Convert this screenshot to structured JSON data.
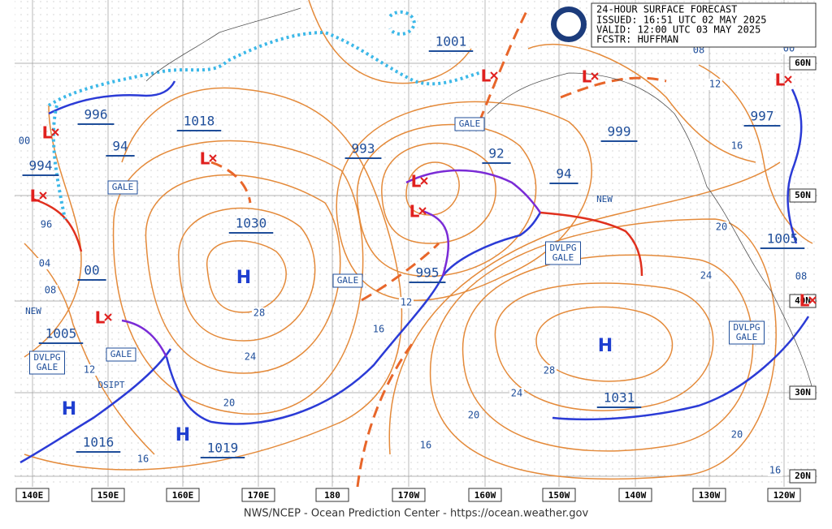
{
  "header": {
    "title": "24-HOUR SURFACE FORECAST",
    "issued": "ISSUED: 16:51 UTC 02 MAY 2025",
    "valid": "VALID:  12:00 UTC 03 MAY 2025",
    "forecaster": "FCSTR:  HUFFMAN"
  },
  "footer": "NWS/NCEP - Ocean Prediction Center - https://ocean.weather.gov",
  "longitude_labels": [
    "140E",
    "150E",
    "160E",
    "170E",
    "180",
    "170W",
    "160W",
    "150W",
    "140W",
    "130W",
    "120W"
  ],
  "latitude_labels": [
    "60N",
    "50N",
    "40N",
    "30N",
    "20N"
  ],
  "pressure_centers": [
    "996",
    "1018",
    "994",
    "94",
    "00",
    "1005",
    "1016",
    "1019",
    "1030",
    "993",
    "1001",
    "995",
    "999",
    "92",
    "94",
    "997",
    "1005",
    "1031"
  ],
  "highs": [
    "H",
    "H",
    "H",
    "H"
  ],
  "lows": [
    "L",
    "L",
    "L",
    "L",
    "L",
    "L",
    "L",
    "L",
    "L",
    "L"
  ],
  "isobar_labels": [
    "00",
    "96",
    "04",
    "08",
    "12",
    "16",
    "20",
    "24",
    "28",
    "12",
    "16",
    "20",
    "16",
    "24",
    "28",
    "20",
    "24",
    "20",
    "16",
    "12",
    "16",
    "08",
    "00",
    "08"
  ],
  "boxed_warnings": [
    [
      "GALE"
    ],
    [
      "GALE"
    ],
    [
      "GALE"
    ],
    [
      "GALE"
    ],
    [
      "DVLPG",
      "GALE"
    ],
    [
      "DVLPG",
      "GALE"
    ],
    [
      "DVLPG",
      "GALE"
    ]
  ],
  "plain_warnings": [
    "NEW",
    "NEW",
    "DSIPT"
  ]
}
